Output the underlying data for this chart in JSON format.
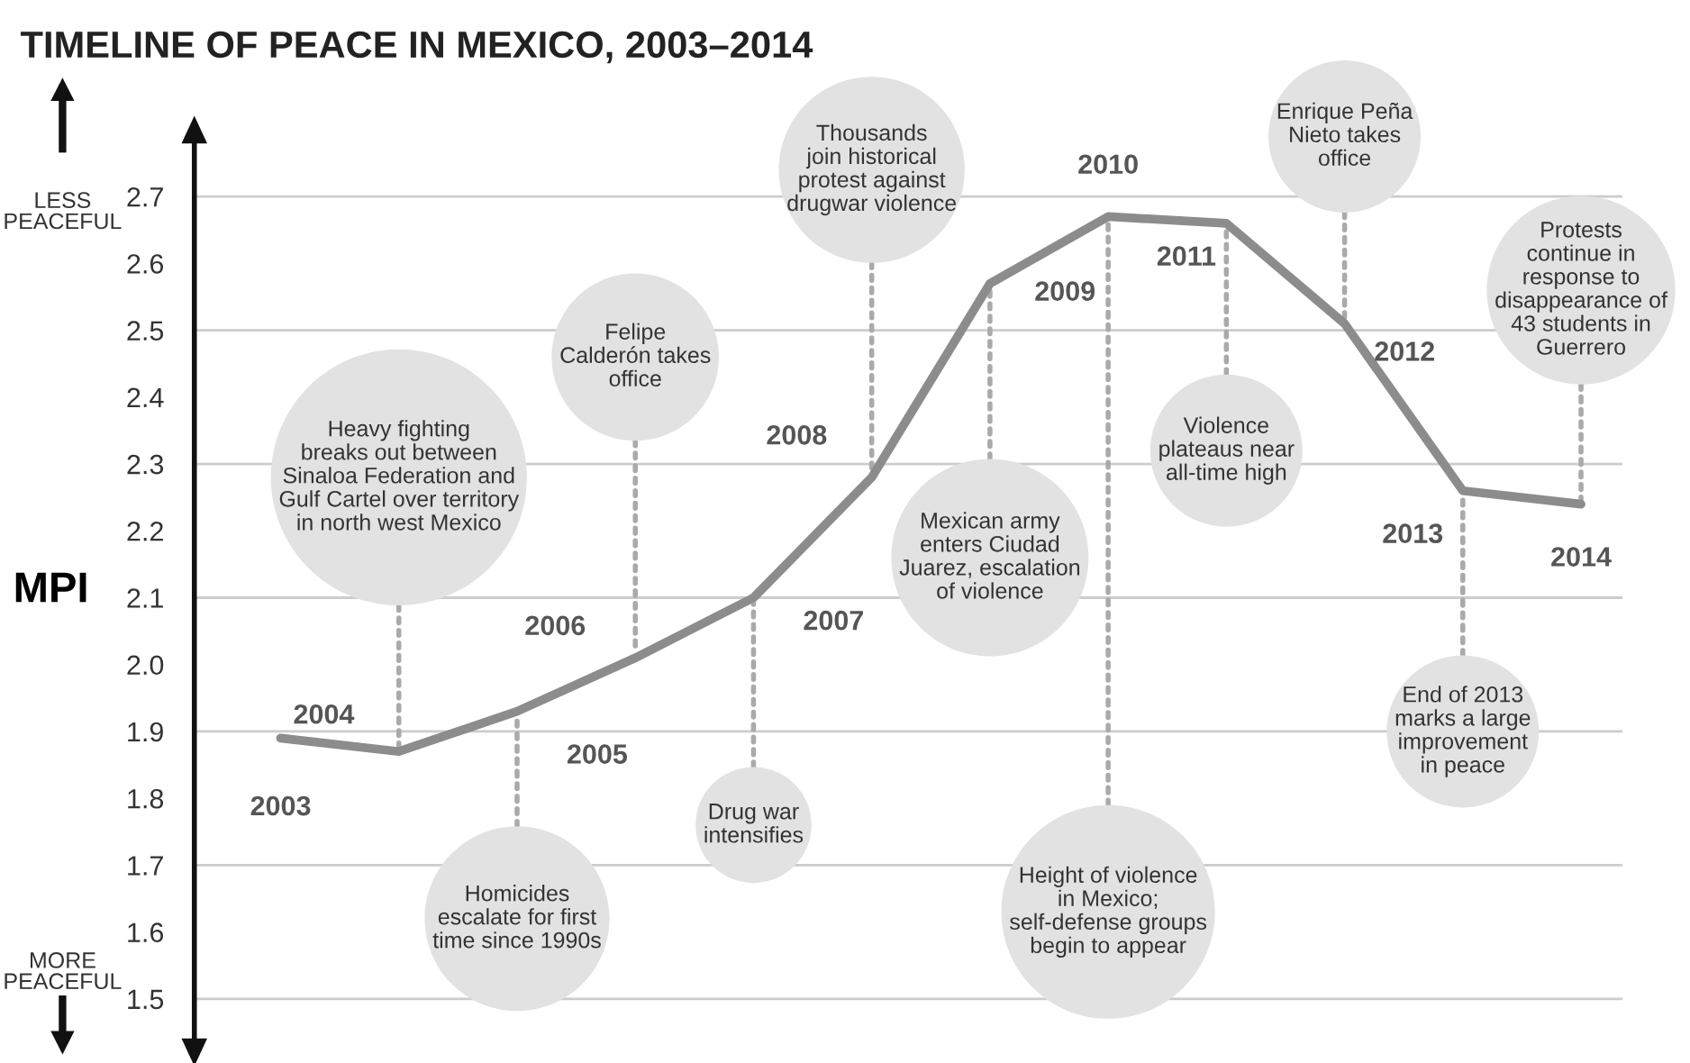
{
  "chart_data": {
    "type": "line",
    "title": "TIMELINE OF PEACE IN MEXICO, 2003–2014",
    "ylabel": "MPI",
    "categories": [
      null,
      null,
      null,
      null,
      null,
      null,
      null,
      null,
      null,
      null,
      null,
      null
    ],
    "series": [
      {
        "color": "#8c8c8c",
        "values": [
          1.89,
          1.87,
          1.93,
          2.01,
          2.1,
          2.28,
          2.57,
          2.67,
          2.66,
          2.51,
          2.26,
          2.24
        ]
      }
    ],
    "ylim": [
      1.42,
      2.8
    ],
    "yticks": [
      1.5,
      1.6,
      1.7,
      1.8,
      1.9,
      {
        "value": 2.0,
        "label": "2.0"
      },
      2.1,
      2.2,
      2.3,
      2.4,
      2.5,
      2.6,
      2.7
    ],
    "tick_labels": "y",
    "marker": "none",
    "line_style": "solid",
    "ref_lines": [
      {
        "axis": "y",
        "value": 1.5,
        "color": "#cccccc"
      },
      {
        "axis": "y",
        "value": 1.7,
        "color": "#cccccc"
      },
      {
        "axis": "y",
        "value": 1.9,
        "color": "#cccccc"
      },
      {
        "axis": "y",
        "value": 2.1,
        "color": "#cccccc"
      },
      {
        "axis": "y",
        "value": 2.3,
        "color": "#cccccc"
      },
      {
        "axis": "y",
        "value": 2.5,
        "color": "#cccccc"
      },
      {
        "axis": "y",
        "value": 2.7,
        "color": "#cccccc"
      }
    ],
    "annotations": [
      "LESS\nPEACEFUL",
      "MORE\nPEACEFUL",
      "2003",
      "2004",
      "2005",
      "2006",
      "2007",
      "2008",
      "2009",
      "2010",
      "2011",
      "2012",
      "2013",
      "2014",
      "Heavy fighting\nbreaks out between\nSinaloa Federation and\nGulf Cartel over territory\nin north west Mexico",
      "Homicides\nescalate for first\ntime since 1990s",
      "Felipe\nCalderón takes\noffice",
      "Drug war\nintensifies",
      "Thousands\njoin historical\nprotest against\ndrugwar violence",
      "Mexican army\nenters Ciudad\nJuarez, escalation\nof violence",
      "Height of violence\nin Mexico;\nself-defense groups\nbegin to appear",
      "Violence\nplateaus near\nall-time high",
      "Enrique Peña\nNieto takes\noffice",
      "End of 2013\nmarks a large\nimprovement\nin peace",
      "Protests\ncontinue in\nresponse to\ndisappearance of\n43 students in\nGuerrero"
    ]
  }
}
